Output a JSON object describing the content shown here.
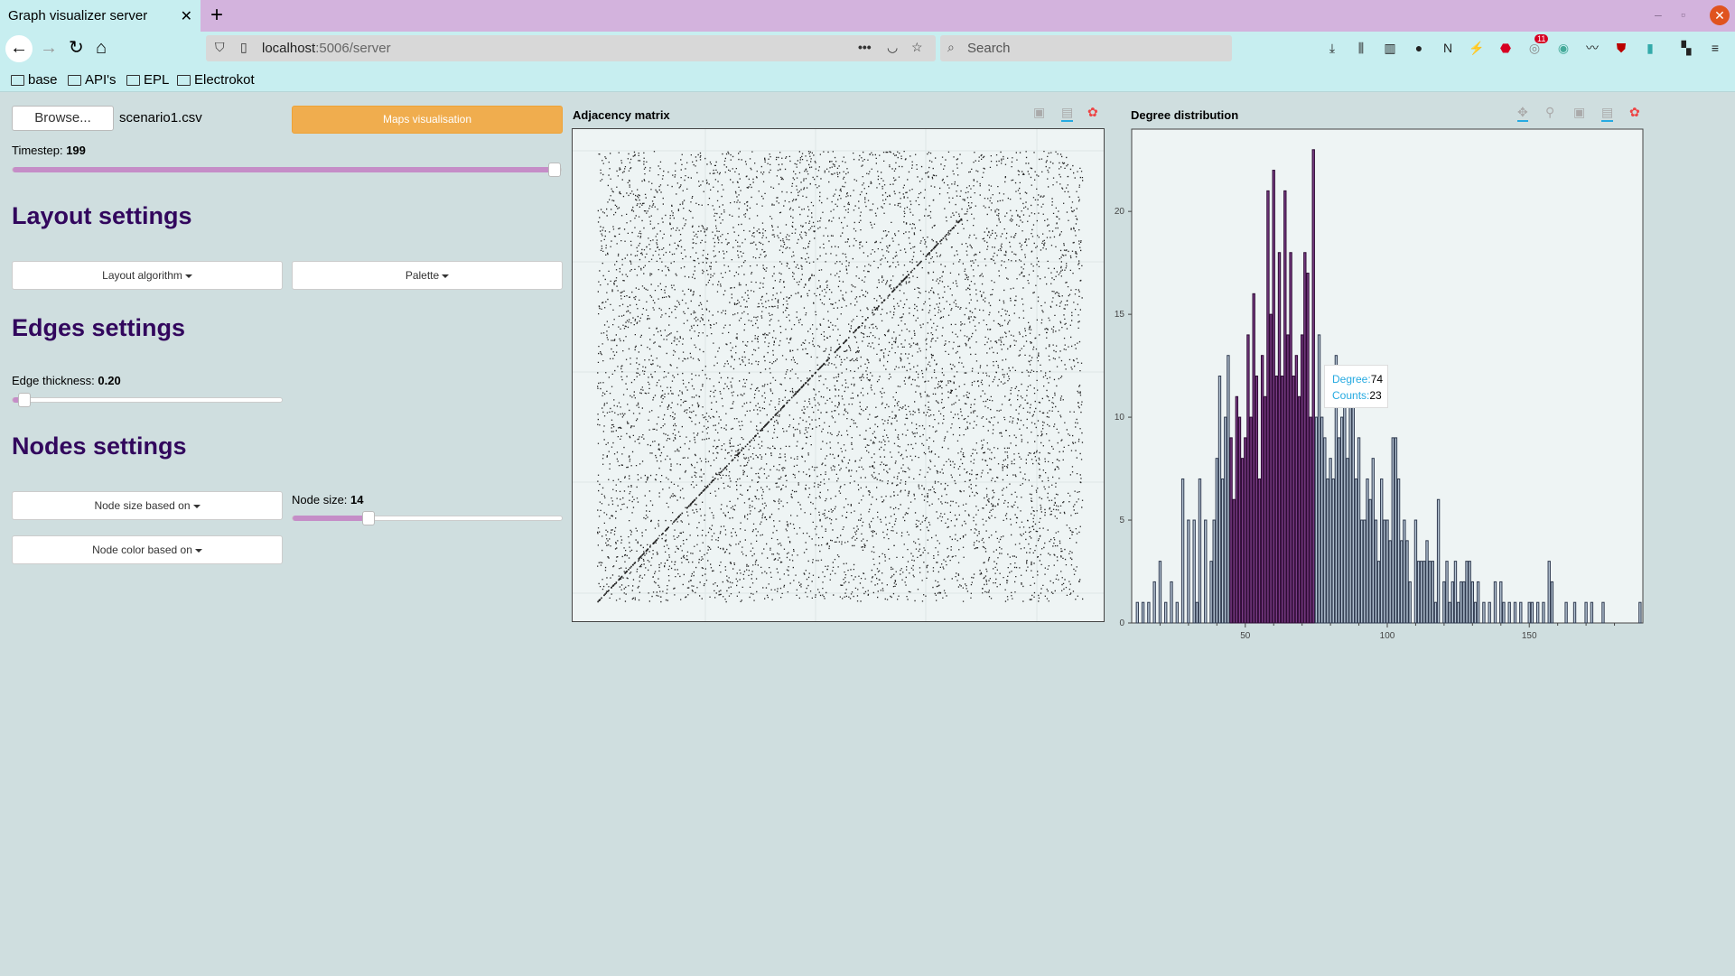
{
  "browser": {
    "tab_title": "Graph visualizer server",
    "url_host": "localhost",
    "url_path": ":5006/server",
    "search_placeholder": "Search",
    "badge_count": "11",
    "bookmarks": [
      "base",
      "API's",
      "EPL",
      "Electrokot"
    ]
  },
  "controls": {
    "browse_label": "Browse...",
    "file_name": "scenario1.csv",
    "maps_button": "Maps visualisation",
    "timestep_label": "Timestep: ",
    "timestep_value": "199",
    "timestep_fraction": 1.0,
    "layout_heading": "Layout settings",
    "layout_algorithm": "Layout algorithm",
    "palette": "Palette",
    "edges_heading": "Edges settings",
    "edge_thickness_label": "Edge thickness: ",
    "edge_thickness_value": "0.20",
    "edge_thickness_fraction": 0.02,
    "nodes_heading": "Nodes settings",
    "node_size_based_on": "Node size based on",
    "node_size_label": "Node size: ",
    "node_size_value": "14",
    "node_size_fraction": 0.27,
    "node_color_based_on": "Node color based on"
  },
  "plots": {
    "adjacency_title": "Adjacency matrix",
    "degree_title": "Degree distribution",
    "tooltip": {
      "degree_key": "Degree:",
      "degree_value": "74",
      "counts_key": "Counts:",
      "counts_value": "23"
    }
  },
  "chart_data": {
    "type": "bar",
    "title": "Degree distribution",
    "xlabel": "",
    "ylabel": "",
    "xticks": [
      "50",
      "100",
      "150"
    ],
    "yticks": [
      "0",
      "5",
      "10",
      "15",
      "20"
    ],
    "ylim": [
      0,
      24
    ],
    "xlim": [
      10,
      190
    ],
    "bars": [
      [
        12,
        1
      ],
      [
        14,
        1
      ],
      [
        16,
        1
      ],
      [
        18,
        2
      ],
      [
        20,
        3
      ],
      [
        22,
        1
      ],
      [
        24,
        2
      ],
      [
        26,
        1
      ],
      [
        28,
        7
      ],
      [
        30,
        5
      ],
      [
        32,
        5
      ],
      [
        33,
        1
      ],
      [
        34,
        7
      ],
      [
        36,
        5
      ],
      [
        38,
        3
      ],
      [
        39,
        5
      ],
      [
        40,
        8
      ],
      [
        41,
        12
      ],
      [
        42,
        7
      ],
      [
        43,
        10
      ],
      [
        44,
        13
      ],
      [
        45,
        9
      ],
      [
        46,
        6
      ],
      [
        47,
        11
      ],
      [
        48,
        10
      ],
      [
        49,
        8
      ],
      [
        50,
        9
      ],
      [
        51,
        14
      ],
      [
        52,
        10
      ],
      [
        53,
        16
      ],
      [
        54,
        12
      ],
      [
        55,
        7
      ],
      [
        56,
        13
      ],
      [
        57,
        11
      ],
      [
        58,
        21
      ],
      [
        59,
        15
      ],
      [
        60,
        22
      ],
      [
        61,
        12
      ],
      [
        62,
        18
      ],
      [
        63,
        12
      ],
      [
        64,
        21
      ],
      [
        65,
        14
      ],
      [
        66,
        18
      ],
      [
        67,
        12
      ],
      [
        68,
        13
      ],
      [
        69,
        11
      ],
      [
        70,
        14
      ],
      [
        71,
        18
      ],
      [
        72,
        17
      ],
      [
        73,
        10
      ],
      [
        74,
        23
      ],
      [
        75,
        10
      ],
      [
        76,
        14
      ],
      [
        77,
        10
      ],
      [
        78,
        9
      ],
      [
        79,
        7
      ],
      [
        80,
        8
      ],
      [
        81,
        7
      ],
      [
        82,
        13
      ],
      [
        83,
        9
      ],
      [
        84,
        10
      ],
      [
        85,
        11
      ],
      [
        86,
        8
      ],
      [
        87,
        12
      ],
      [
        88,
        12
      ],
      [
        89,
        7
      ],
      [
        90,
        9
      ],
      [
        91,
        5
      ],
      [
        92,
        5
      ],
      [
        93,
        7
      ],
      [
        94,
        6
      ],
      [
        95,
        8
      ],
      [
        96,
        5
      ],
      [
        97,
        3
      ],
      [
        98,
        7
      ],
      [
        99,
        5
      ],
      [
        100,
        5
      ],
      [
        101,
        4
      ],
      [
        102,
        9
      ],
      [
        103,
        9
      ],
      [
        104,
        7
      ],
      [
        105,
        4
      ],
      [
        106,
        5
      ],
      [
        107,
        4
      ],
      [
        108,
        2
      ],
      [
        110,
        5
      ],
      [
        111,
        3
      ],
      [
        112,
        3
      ],
      [
        113,
        3
      ],
      [
        114,
        4
      ],
      [
        115,
        3
      ],
      [
        116,
        3
      ],
      [
        117,
        1
      ],
      [
        118,
        6
      ],
      [
        120,
        2
      ],
      [
        121,
        3
      ],
      [
        122,
        1
      ],
      [
        123,
        2
      ],
      [
        124,
        3
      ],
      [
        125,
        1
      ],
      [
        126,
        2
      ],
      [
        127,
        2
      ],
      [
        128,
        3
      ],
      [
        129,
        3
      ],
      [
        130,
        2
      ],
      [
        131,
        1
      ],
      [
        132,
        2
      ],
      [
        134,
        1
      ],
      [
        136,
        1
      ],
      [
        138,
        2
      ],
      [
        140,
        2
      ],
      [
        141,
        1
      ],
      [
        143,
        1
      ],
      [
        145,
        1
      ],
      [
        147,
        1
      ],
      [
        150,
        1
      ],
      [
        151,
        1
      ],
      [
        153,
        1
      ],
      [
        155,
        1
      ],
      [
        157,
        3
      ],
      [
        158,
        2
      ],
      [
        163,
        1
      ],
      [
        166,
        1
      ],
      [
        170,
        1
      ],
      [
        172,
        1
      ],
      [
        176,
        1
      ],
      [
        189,
        1
      ]
    ],
    "highlight_range": [
      45,
      74
    ],
    "grid": false,
    "legend": "none"
  },
  "matrix_data": {
    "type": "scatter",
    "nodes": 200,
    "grid": true
  }
}
